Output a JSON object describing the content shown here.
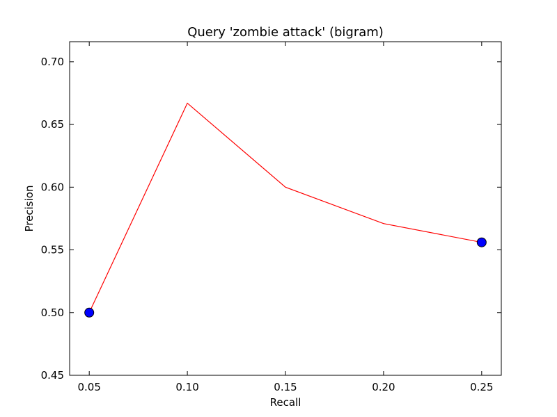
{
  "chart_data": {
    "type": "line",
    "title": "Query 'zombie attack' (bigram)",
    "xlabel": "Recall",
    "ylabel": "Precision",
    "xlim": [
      0.04,
      0.26
    ],
    "ylim": [
      0.45,
      0.716
    ],
    "xticks": [
      "0.05",
      "0.10",
      "0.15",
      "0.20",
      "0.25"
    ],
    "yticks": [
      "0.45",
      "0.50",
      "0.55",
      "0.60",
      "0.65",
      "0.70"
    ],
    "grid": false,
    "series": [
      {
        "x": [
          0.05,
          0.1,
          0.15,
          0.2,
          0.25
        ],
        "y": [
          0.5,
          0.667,
          0.6,
          0.571,
          0.556
        ],
        "color": "#ff0000"
      }
    ],
    "markers": {
      "x": [
        0.05,
        0.25
      ],
      "y": [
        0.5,
        0.556
      ],
      "color": "#0000ff"
    }
  }
}
